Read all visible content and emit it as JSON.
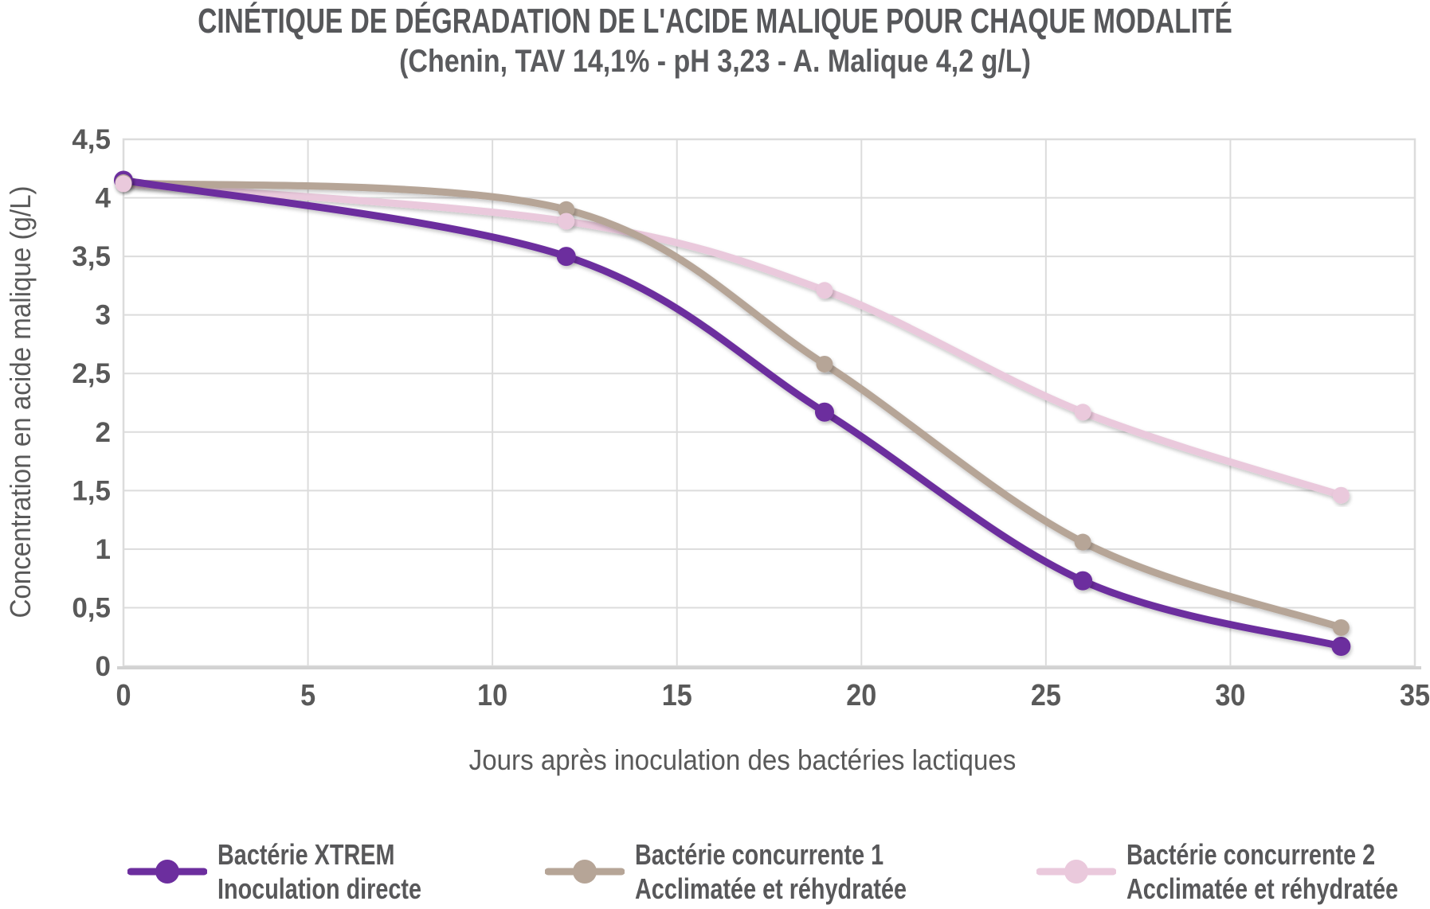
{
  "title": "CINÉTIQUE DE DÉGRADATION DE L'ACIDE MALIQUE POUR CHAQUE MODALITÉ",
  "subtitle": "(Chenin, TAV 14,1% - pH 3,23 - A. Malique 4,2 g/L)",
  "chart_data": {
    "type": "line",
    "title": "CINÉTIQUE DE DÉGRADATION DE L'ACIDE MALIQUE POUR CHAQUE MODALITÉ",
    "subtitle": "(Chenin, TAV 14,1% - pH 3,23 - A. Malique 4,2 g/L)",
    "xlabel": "Jours après inoculation des bactéries lactiques",
    "ylabel": "Concentration en acide malique (g/L)",
    "x": [
      0,
      12,
      19,
      26,
      33
    ],
    "series": [
      {
        "name": "Bactérie XTREM",
        "subname": "Inoculation directe",
        "color": "#6C2E9E",
        "values": [
          4.15,
          3.5,
          2.17,
          0.73,
          0.17
        ]
      },
      {
        "name": "Bactérie concurrente 1",
        "subname": "Acclimatée et réhydratée",
        "color": "#B6A597",
        "values": [
          4.13,
          3.9,
          2.58,
          1.06,
          0.33
        ]
      },
      {
        "name": "Bactérie concurrente 2",
        "subname": "Acclimatée et réhydratée",
        "color": "#EAC9DC",
        "values": [
          4.12,
          3.8,
          3.21,
          2.17,
          1.46
        ]
      }
    ],
    "xlim": [
      0,
      35
    ],
    "ylim": [
      0,
      4.5
    ],
    "xtick_values": [
      0,
      5,
      10,
      15,
      20,
      25,
      30,
      35
    ],
    "xtick_labels": [
      "0",
      "5",
      "10",
      "15",
      "20",
      "25",
      "30",
      "35"
    ],
    "ytick_values": [
      4.5,
      4,
      3.5,
      3,
      2.5,
      2,
      1.5,
      1,
      0.5,
      0
    ],
    "ytick_labels": [
      "4,5",
      "4",
      "3,5",
      "3",
      "2,5",
      "2",
      "1,5",
      "1",
      "0,5",
      "0"
    ],
    "grid": true,
    "legend_position": "bottom"
  },
  "colors": {
    "text": "#595959",
    "grid": "#DCDCDC",
    "axis": "#D2D2D2"
  }
}
